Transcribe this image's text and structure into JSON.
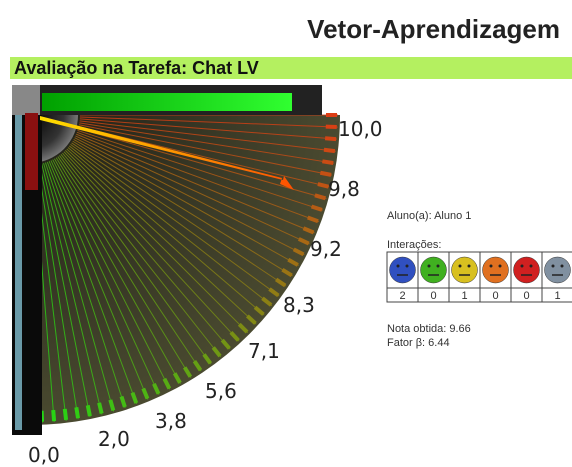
{
  "header": {
    "title": "Vetor-Aprendizagem"
  },
  "panel": {
    "title": "Avaliação na Tarefa: Chat LV"
  },
  "gauge": {
    "labels": [
      "0,0",
      "2,0",
      "3,8",
      "5,6",
      "7,1",
      "8,3",
      "9,2",
      "9,8",
      "10,0"
    ]
  },
  "student": {
    "label": "Aluno(a): Aluno 1"
  },
  "interactions": {
    "title": "Interações:",
    "counts": [
      2,
      0,
      1,
      0,
      0,
      1
    ]
  },
  "results": {
    "grade": "Nota obtida: 9.66",
    "factor": "Fator β: 6.44"
  }
}
